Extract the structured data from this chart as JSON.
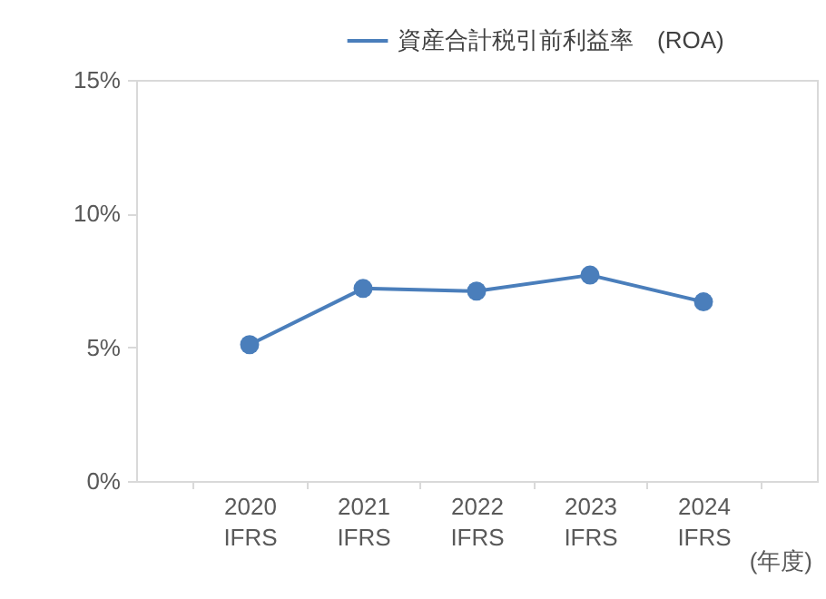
{
  "chart_data": {
    "type": "line",
    "categories": [
      "2020\nIFRS",
      "2021\nIFRS",
      "2022\nIFRS",
      "2023\nIFRS",
      "2024\nIFRS"
    ],
    "xlabel": "(年度)",
    "series": [
      {
        "name": "資産合計税引前利益率　(ROA)",
        "color": "#4a7ebb",
        "values": [
          5.1,
          7.2,
          7.1,
          7.7,
          6.7
        ]
      }
    ],
    "ylim": [
      0,
      15
    ],
    "yticks": [
      {
        "value": 0,
        "label": "0%"
      },
      {
        "value": 5,
        "label": "5%"
      },
      {
        "value": 10,
        "label": "10%"
      },
      {
        "value": 15,
        "label": "15%"
      }
    ],
    "grid": false,
    "legend": "top right",
    "marker": "circle",
    "line_style": "solid"
  }
}
